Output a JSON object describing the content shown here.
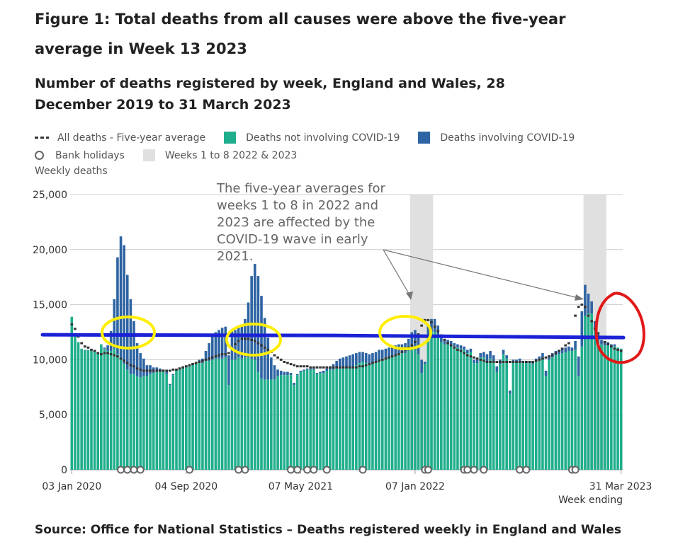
{
  "figure_title": "Figure 1: Total deaths from all causes were above the five-year average in Week 13 2023",
  "chart_title": "Number of deaths registered by week, England and Wales, 28 December 2019 to 31 March 2023",
  "legend": {
    "five_year_avg": "All deaths - Five-year average",
    "not_covid": "Deaths not involving COVID-19",
    "covid": "Deaths involving COVID-19",
    "bank_holidays": "Bank holidays",
    "shaded_weeks": "Weeks 1 to 8 2022 & 2023"
  },
  "footer_text": "Source: Office for National Statistics – Deaths registered weekly in England and Wales",
  "colors": {
    "not_covid": "#1fae8c",
    "covid": "#2e64a3",
    "average": "#333333",
    "shade": "#e0e0e0",
    "grid": "#cccccc",
    "blue_line": "#1b22d6",
    "yellow": "#ffee00",
    "red": "#e01818"
  },
  "chart_data": {
    "type": "bar",
    "stacked": true,
    "title": "Number of deaths registered by week, England and Wales, 28 December 2019 to 31 March 2023",
    "ylabel": "Weekly deaths",
    "xlabel": "Week ending",
    "ylim": [
      0,
      25000
    ],
    "y_ticks": [
      "0",
      "5,000",
      "10,000",
      "15,000",
      "20,000",
      "25,000"
    ],
    "x_ticks": [
      "03 Jan 2020",
      "04 Sep 2020",
      "07 May 2021",
      "07 Jan 2022",
      "31 Mar 2023"
    ],
    "x_tick_weeks": [
      0,
      35,
      70,
      105,
      168
    ],
    "n_weeks": 169,
    "series": [
      {
        "name": "Deaths not involving COVID-19",
        "values": [
          13900,
          12200,
          11600,
          11000,
          10900,
          10900,
          10800,
          10800,
          10600,
          11400,
          11000,
          10800,
          10800,
          11000,
          10500,
          10200,
          9600,
          9100,
          8700,
          8700,
          8500,
          8400,
          8500,
          8500,
          8700,
          8800,
          8900,
          8900,
          8900,
          8700,
          7700,
          8600,
          9000,
          9200,
          9300,
          9300,
          9400,
          9600,
          9700,
          9800,
          9700,
          9900,
          9900,
          10000,
          10100,
          10100,
          10100,
          10200,
          7700,
          10000,
          10000,
          10200,
          10100,
          10200,
          10200,
          10100,
          10000,
          8900,
          8300,
          8200,
          8200,
          8200,
          8200,
          8500,
          8600,
          8600,
          8600,
          8600,
          7700,
          8600,
          8900,
          9000,
          9100,
          9100,
          9100,
          8700,
          8800,
          8800,
          9000,
          9100,
          9100,
          9200,
          9200,
          9200,
          9300,
          9300,
          9400,
          9500,
          9700,
          9800,
          9700,
          9600,
          9700,
          9800,
          10000,
          10100,
          10200,
          10300,
          10400,
          10500,
          10600,
          10600,
          10600,
          10800,
          11000,
          10900,
          10500,
          8800,
          9600,
          12200,
          12600,
          12500,
          12000,
          11600,
          11400,
          11400,
          11300,
          11200,
          11100,
          11000,
          10900,
          10600,
          10700,
          9700,
          9700,
          10200,
          10200,
          9800,
          10100,
          9800,
          8900,
          9600,
          10500,
          10100,
          6900,
          9800,
          9800,
          9900,
          9700,
          9700,
          9700,
          9600,
          9800,
          10000,
          10200,
          8500,
          10000,
          10200,
          10400,
          10500,
          10600,
          10700,
          10800,
          10800,
          10900,
          8500,
          11200,
          14000,
          14200,
          14200,
          12800,
          11800,
          11400,
          11300,
          11300,
          11200,
          11200,
          11100,
          11000
        ]
      },
      {
        "name": "Deaths involving COVID-19",
        "values": [
          0,
          0,
          0,
          0,
          0,
          0,
          0,
          0,
          0,
          0,
          100,
          500,
          1800,
          4500,
          8800,
          11000,
          10800,
          8600,
          6800,
          4800,
          3000,
          2200,
          1600,
          1000,
          800,
          500,
          400,
          300,
          200,
          200,
          100,
          100,
          100,
          100,
          100,
          100,
          100,
          100,
          100,
          200,
          400,
          900,
          1600,
          2200,
          2400,
          2600,
          2800,
          2800,
          2700,
          2700,
          2700,
          2700,
          3000,
          3500,
          5000,
          7500,
          8700,
          8700,
          7500,
          5600,
          3800,
          2000,
          1300,
          600,
          400,
          300,
          300,
          200,
          200,
          100,
          100,
          100,
          100,
          100,
          100,
          100,
          100,
          200,
          200,
          300,
          500,
          700,
          900,
          1000,
          1000,
          1100,
          1100,
          1100,
          1000,
          900,
          900,
          900,
          900,
          900,
          900,
          800,
          800,
          800,
          800,
          800,
          800,
          800,
          900,
          1100,
          1500,
          1800,
          1700,
          1200,
          200,
          900,
          1100,
          1200,
          1100,
          700,
          500,
          400,
          400,
          300,
          300,
          300,
          300,
          300,
          300,
          300,
          300,
          400,
          500,
          700,
          700,
          600,
          500,
          400,
          400,
          300,
          300,
          200,
          200,
          200,
          200,
          200,
          200,
          200,
          300,
          300,
          400,
          500,
          400,
          400,
          400,
          400,
          400,
          400,
          400,
          300,
          800,
          1800,
          3200,
          2800,
          1800,
          1100,
          700,
          500,
          400,
          300,
          300,
          200,
          200
        ]
      },
      {
        "name": "All deaths - Five-year average",
        "values": [
          13200,
          12800,
          12100,
          11500,
          11200,
          11100,
          10900,
          10800,
          10600,
          10500,
          10600,
          10600,
          10500,
          10400,
          10300,
          10100,
          9900,
          9700,
          9500,
          9400,
          9200,
          9100,
          9000,
          9000,
          9000,
          9000,
          9000,
          9000,
          9000,
          9000,
          9000,
          9100,
          9100,
          9200,
          9300,
          9400,
          9500,
          9600,
          9700,
          9800,
          9900,
          10000,
          10100,
          10200,
          10300,
          10400,
          10500,
          10500,
          10600,
          11000,
          11400,
          11700,
          11900,
          11900,
          11900,
          11800,
          11700,
          11500,
          11300,
          11100,
          10900,
          10700,
          10400,
          10200,
          10000,
          9800,
          9700,
          9600,
          9500,
          9400,
          9400,
          9400,
          9400,
          9300,
          9300,
          9300,
          9300,
          9300,
          9300,
          9300,
          9300,
          9300,
          9300,
          9300,
          9300,
          9300,
          9300,
          9300,
          9400,
          9400,
          9500,
          9600,
          9700,
          9800,
          9900,
          10000,
          10100,
          10200,
          10300,
          10400,
          10500,
          10700,
          10900,
          11100,
          11300,
          11600,
          12300,
          13100,
          13600,
          13600,
          13400,
          13000,
          12600,
          12200,
          11800,
          11500,
          11300,
          11100,
          10900,
          10800,
          10600,
          10400,
          10300,
          10200,
          10100,
          10000,
          9900,
          9800,
          9800,
          9800,
          9800,
          9800,
          9800,
          9800,
          9800,
          9800,
          9800,
          9800,
          9800,
          9800,
          9800,
          9800,
          9900,
          10000,
          10100,
          10200,
          10300,
          10400,
          10600,
          10800,
          11000,
          11300,
          11500,
          12000,
          14000,
          14800,
          15000,
          14800,
          14000,
          13500,
          12800,
          12400,
          12000,
          11600,
          11400,
          11200,
          11000,
          10900,
          10800
        ]
      },
      {
        "name": "Bank holidays",
        "weeks": [
          15,
          17,
          19,
          21,
          36,
          51,
          53,
          67,
          69,
          72,
          74,
          78,
          89,
          108,
          109,
          120,
          121,
          123,
          126,
          137,
          139,
          153,
          154
        ]
      }
    ],
    "shaded_ranges": [
      [
        104,
        111
      ],
      [
        157,
        164
      ]
    ],
    "annotations": [
      "The five-year averages for weeks 1 to 8 in 2022 and 2023 are affected by the COVID-19 wave in early 2021."
    ],
    "overlay_reference_level": 12200
  }
}
